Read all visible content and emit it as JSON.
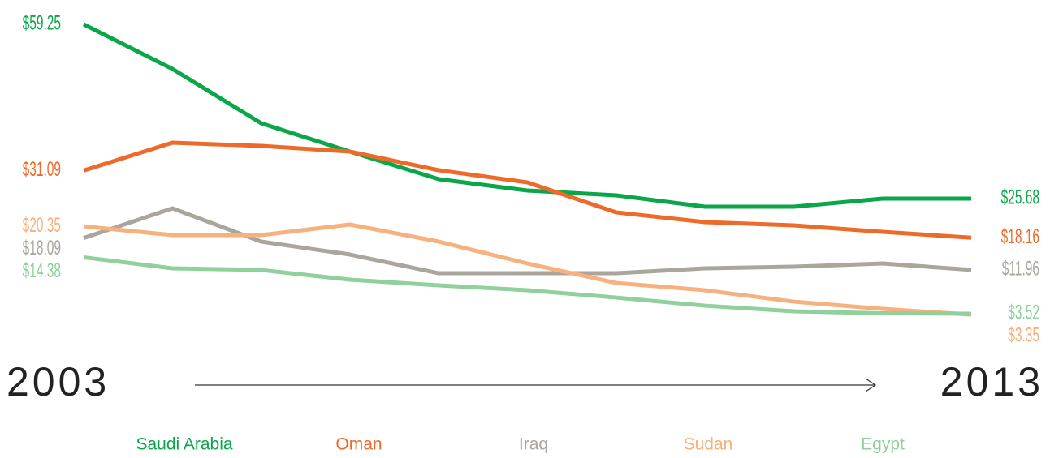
{
  "chart_data": {
    "type": "line",
    "x": [
      2003,
      2004,
      2005,
      2006,
      2007,
      2008,
      2009,
      2010,
      2011,
      2012,
      2013
    ],
    "xlim": [
      2003,
      2013
    ],
    "xticks": [
      2003,
      2013
    ],
    "ylim": [
      3.05,
      59.25
    ],
    "series": [
      {
        "name": "Saudi Arabia",
        "color": "#0aa64a",
        "values": [
          59.25,
          50.66,
          40.2,
          34.74,
          29.43,
          27.24,
          26.31,
          24.12,
          24.12,
          25.68,
          25.68
        ],
        "value_labels": [
          "$59.25",
          null,
          null,
          null,
          null,
          null,
          null,
          null,
          null,
          null,
          "$25.68"
        ]
      },
      {
        "name": "Oman",
        "color": "#ee6a2a",
        "values": [
          31.09,
          36.45,
          35.83,
          34.74,
          31.15,
          28.81,
          23.03,
          21.16,
          20.53,
          19.28,
          18.16
        ],
        "value_labels": [
          "$31.09",
          null,
          null,
          null,
          null,
          null,
          null,
          null,
          null,
          null,
          "$18.16"
        ]
      },
      {
        "name": "Iraq",
        "color": "#aaa69c",
        "values": [
          18.09,
          23.81,
          17.41,
          14.91,
          11.32,
          11.32,
          11.32,
          12.26,
          12.57,
          13.19,
          11.96
        ],
        "value_labels": [
          "$18.09",
          null,
          null,
          null,
          null,
          null,
          null,
          null,
          null,
          null,
          "$11.96"
        ]
      },
      {
        "name": "Sudan",
        "color": "#f7b07e",
        "values": [
          20.35,
          18.66,
          18.66,
          20.69,
          17.41,
          13.19,
          9.44,
          8.04,
          5.85,
          4.45,
          3.35
        ],
        "value_labels": [
          "$20.35",
          null,
          null,
          null,
          null,
          null,
          null,
          null,
          null,
          null,
          "$3.35"
        ]
      },
      {
        "name": "Egypt",
        "color": "#8fd09c",
        "values": [
          14.38,
          12.26,
          11.94,
          10.07,
          8.98,
          8.04,
          6.63,
          5.07,
          3.98,
          3.6,
          3.52
        ],
        "value_labels": [
          "$14.38",
          null,
          null,
          null,
          null,
          null,
          null,
          null,
          null,
          null,
          "$3.52"
        ]
      }
    ]
  }
}
